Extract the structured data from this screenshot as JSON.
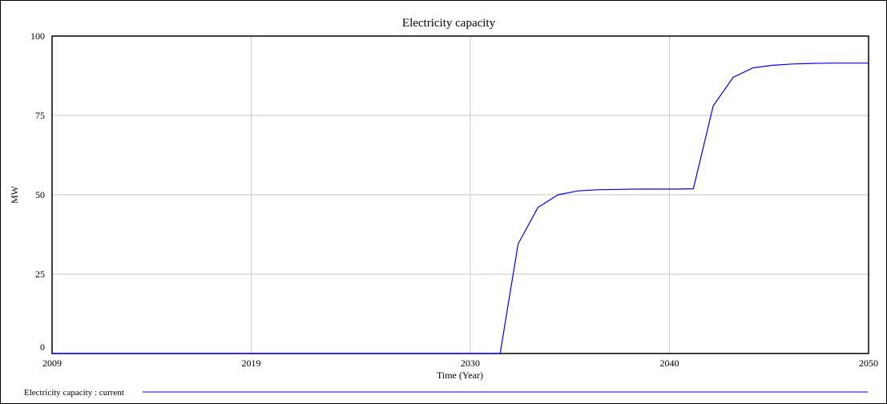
{
  "chart_data": {
    "type": "line",
    "title": "Electricity capacity",
    "xlabel": "Time (Year)",
    "ylabel": "MW",
    "xlim": [
      2009,
      2050
    ],
    "ylim": [
      0,
      100
    ],
    "x_ticks": [
      "2009",
      "2019",
      "2030",
      "2040",
      "2050"
    ],
    "y_ticks": [
      "0",
      "25",
      "50",
      "75",
      "100"
    ],
    "grid": true,
    "legend_position": "bottom-left",
    "series": [
      {
        "name": "Electricity capacity : current",
        "color": "#0000ee",
        "x": [
          2009,
          2020,
          2030,
          2031.5,
          2032.4,
          2033.4,
          2034.4,
          2035.4,
          2036.4,
          2037.4,
          2038.4,
          2039.4,
          2040.4,
          2041.2,
          2042.2,
          2043.2,
          2044.2,
          2045.2,
          2046.2,
          2047.2,
          2048.2,
          2049.2,
          2050
        ],
        "y": [
          0,
          0,
          0,
          0,
          34.5,
          46,
          50,
          51.2,
          51.6,
          51.7,
          51.8,
          51.8,
          51.8,
          51.9,
          78,
          87,
          90,
          90.8,
          91.2,
          91.4,
          91.5,
          91.5,
          91.5
        ]
      }
    ]
  }
}
